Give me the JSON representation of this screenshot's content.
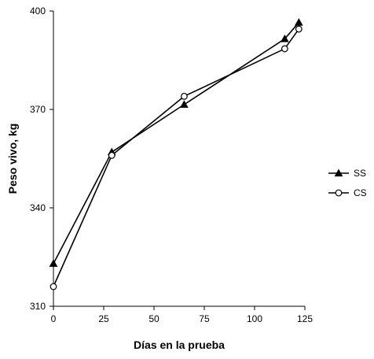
{
  "chart_data": {
    "type": "line",
    "title": "",
    "xlabel": "Días en la prueba",
    "ylabel": "Peso vivo, kg",
    "xlim": [
      0,
      125
    ],
    "ylim": [
      310,
      400
    ],
    "xticks": [
      "0",
      "25",
      "50",
      "75",
      "100",
      "125"
    ],
    "yticks": [
      "310",
      "340",
      "370",
      "400"
    ],
    "grid": false,
    "legend_position": "right",
    "series": [
      {
        "name": "SS",
        "marker": "filled-triangle",
        "x": [
          0,
          29,
          65,
          115,
          122
        ],
        "y": [
          323,
          357,
          371.5,
          391.5,
          396.5
        ]
      },
      {
        "name": "CS",
        "marker": "open-circle",
        "x": [
          0,
          29,
          65,
          115,
          122
        ],
        "y": [
          316,
          356,
          374,
          388.5,
          394.5
        ]
      }
    ]
  }
}
